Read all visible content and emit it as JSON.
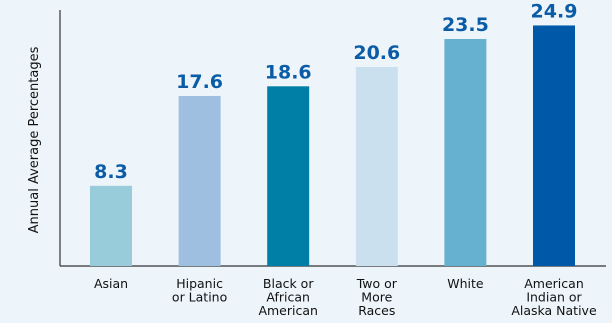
{
  "chart_data": {
    "type": "bar",
    "title": "",
    "xlabel": "",
    "ylabel": "Annual Average Percentages",
    "ylim": [
      0,
      26.5
    ],
    "grid": false,
    "legend": "none",
    "categories": [
      [
        "Asian"
      ],
      [
        "Hipanic",
        "or Latino"
      ],
      [
        "Black or",
        "African",
        "American"
      ],
      [
        "Two or",
        "More",
        "Races"
      ],
      [
        "White"
      ],
      [
        "American",
        "Indian or",
        "Alaska Native"
      ]
    ],
    "values": [
      8.3,
      17.6,
      18.6,
      20.6,
      23.5,
      24.9
    ],
    "value_labels": [
      "8.3",
      "17.6",
      "18.6",
      "20.6",
      "23.5",
      "24.9"
    ],
    "bar_colors": [
      "#99ccda",
      "#9ebfe0",
      "#007fa6",
      "#cbe0ee",
      "#66b1cf",
      "#0059a8"
    ],
    "value_label_color": "#0b5ca6",
    "axis_color": "#333333"
  }
}
